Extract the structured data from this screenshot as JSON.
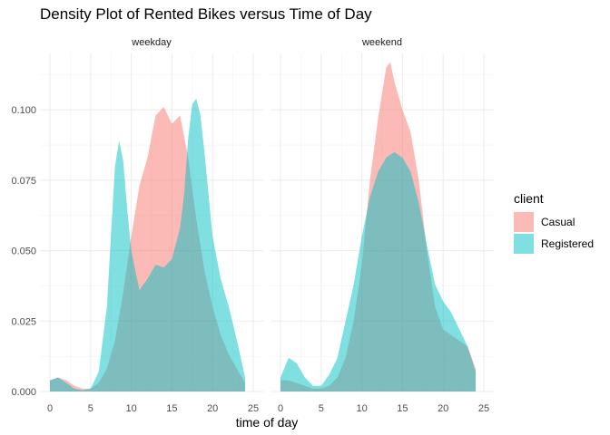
{
  "chart_data": {
    "type": "area",
    "title": "Density Plot of Rented Bikes versus Time of Day",
    "xlabel": "time of day",
    "ylabel": "",
    "xlim": [
      0,
      25
    ],
    "ylim": [
      0,
      0.12
    ],
    "x_ticks": [
      0,
      5,
      10,
      15,
      20,
      25
    ],
    "y_ticks": [
      0,
      0.025,
      0.05,
      0.075,
      0.1
    ],
    "y_tick_labels": [
      "0.000",
      "0.025",
      "0.050",
      "0.075",
      "0.100"
    ],
    "grid": true,
    "legend_position": "right",
    "legend_title": "client",
    "colors": {
      "Casual": "#F8766D",
      "Registered": "#00BFC4"
    },
    "panels": [
      {
        "label": "weekday",
        "series": [
          {
            "name": "Casual",
            "x": [
              0,
              1,
              2,
              3,
              4,
              5,
              6,
              7,
              8,
              9,
              10,
              11,
              12,
              13,
              14,
              15,
              16,
              17,
              18,
              19,
              20,
              21,
              22,
              23,
              24
            ],
            "y": [
              0.004,
              0.005,
              0.004,
              0.002,
              0.001,
              0.001,
              0.003,
              0.008,
              0.018,
              0.035,
              0.055,
              0.073,
              0.083,
              0.098,
              0.101,
              0.095,
              0.098,
              0.083,
              0.061,
              0.043,
              0.03,
              0.02,
              0.013,
              0.008,
              0.003
            ]
          },
          {
            "name": "Registered",
            "x": [
              0,
              1,
              2,
              3,
              4,
              5,
              6,
              7,
              7.5,
              8,
              8.5,
              9,
              9.5,
              10,
              11,
              12,
              13,
              14,
              15,
              16,
              16.5,
              17,
              17.5,
              18,
              18.5,
              19,
              20,
              21,
              22,
              23,
              24
            ],
            "y": [
              0.004,
              0.005,
              0.003,
              0.001,
              0.0005,
              0.001,
              0.007,
              0.03,
              0.055,
              0.08,
              0.089,
              0.082,
              0.065,
              0.05,
              0.036,
              0.04,
              0.045,
              0.044,
              0.047,
              0.058,
              0.07,
              0.09,
              0.102,
              0.104,
              0.098,
              0.085,
              0.055,
              0.04,
              0.03,
              0.018,
              0.005
            ]
          }
        ]
      },
      {
        "label": "weekend",
        "series": [
          {
            "name": "Casual",
            "x": [
              0,
              1,
              2,
              3,
              4,
              5,
              6,
              7,
              8,
              9,
              10,
              11,
              12,
              13,
              13.5,
              14,
              15,
              16,
              17,
              18,
              19,
              20,
              21,
              22,
              23,
              24
            ],
            "y": [
              0.004,
              0.004,
              0.003,
              0.002,
              0.001,
              0.001,
              0.002,
              0.005,
              0.012,
              0.025,
              0.045,
              0.075,
              0.097,
              0.115,
              0.117,
              0.11,
              0.1,
              0.092,
              0.075,
              0.05,
              0.03,
              0.022,
              0.02,
              0.018,
              0.016,
              0.008
            ]
          },
          {
            "name": "Registered",
            "x": [
              0,
              1,
              2,
              3,
              4,
              5,
              6,
              7,
              8,
              9,
              10,
              11,
              12,
              13,
              14,
              15,
              16,
              17,
              18,
              19,
              20,
              21,
              22,
              23,
              24
            ],
            "y": [
              0.005,
              0.012,
              0.01,
              0.005,
              0.002,
              0.002,
              0.006,
              0.012,
              0.025,
              0.038,
              0.055,
              0.069,
              0.078,
              0.083,
              0.085,
              0.083,
              0.078,
              0.067,
              0.052,
              0.038,
              0.032,
              0.028,
              0.022,
              0.016,
              0.007
            ]
          }
        ]
      }
    ]
  }
}
